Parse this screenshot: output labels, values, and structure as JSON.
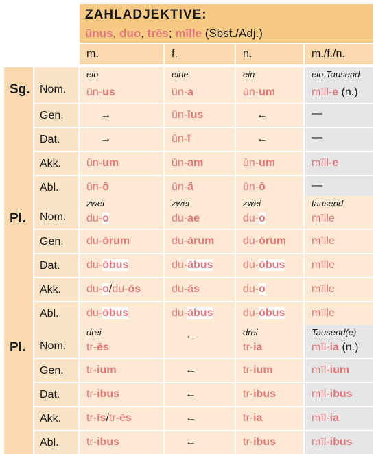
{
  "header": {
    "title": "ZAHLADJEKTIVE:",
    "sub": [
      {
        "t": "ūnus",
        "c": "salmon"
      },
      {
        "t": ", ",
        "c": "blk"
      },
      {
        "t": "duo",
        "c": "salmon"
      },
      {
        "t": ", ",
        "c": "blk"
      },
      {
        "t": "trēs",
        "c": "salmon"
      },
      {
        "t": ";  ",
        "c": "blk"
      },
      {
        "t": "mīlle",
        "c": "salmon"
      },
      {
        "t": " (Sbst./Adj.)",
        "c": "blk"
      }
    ],
    "columns": [
      "m.",
      "f.",
      "n.",
      "m./f./n."
    ]
  },
  "groups": [
    {
      "label": "Sg.",
      "rows": [
        {
          "case": "Nom.",
          "cells": [
            {
              "tag": "ein",
              "form": [
                [
                  "ūn-",
                  0
                ],
                [
                  "us",
                  1
                ]
              ]
            },
            {
              "tag": "eine",
              "form": [
                [
                  "ūn-",
                  0
                ],
                [
                  "a",
                  1
                ]
              ]
            },
            {
              "tag": "ein",
              "form": [
                [
                  "ūn-",
                  0
                ],
                [
                  "um",
                  1
                ]
              ]
            },
            {
              "tag": "ein Tausend",
              "form": [
                [
                  "mīll-",
                  0
                ],
                [
                  "e",
                  1
                ],
                [
                  " (n.)",
                  2
                ]
              ]
            }
          ]
        },
        {
          "case": "Gen.",
          "cells": [
            {
              "arrow": "→"
            },
            {
              "form": [
                [
                  "ūn-",
                  0
                ],
                [
                  "īus",
                  1
                ]
              ]
            },
            {
              "arrow": "←"
            },
            {
              "dash": "—"
            }
          ]
        },
        {
          "case": "Dat.",
          "cells": [
            {
              "arrow": "→"
            },
            {
              "form": [
                [
                  "ūn-",
                  0
                ],
                [
                  "ī",
                  1
                ]
              ]
            },
            {
              "arrow": "←"
            },
            {
              "dash": "—"
            }
          ]
        },
        {
          "case": "Akk.",
          "cells": [
            {
              "form": [
                [
                  "ūn-",
                  0
                ],
                [
                  "um",
                  1
                ]
              ]
            },
            {
              "form": [
                [
                  "ūn-",
                  0
                ],
                [
                  "am",
                  1
                ]
              ]
            },
            {
              "form": [
                [
                  "ūn-",
                  0
                ],
                [
                  "um",
                  1
                ]
              ]
            },
            {
              "form": [
                [
                  "mīll-",
                  0
                ],
                [
                  "e",
                  1
                ]
              ]
            }
          ]
        },
        {
          "case": "Abl.",
          "cells": [
            {
              "form": [
                [
                  "ūn-",
                  0
                ],
                [
                  "ō",
                  1
                ]
              ]
            },
            {
              "form": [
                [
                  "ūn-",
                  0
                ],
                [
                  "ā",
                  1
                ]
              ]
            },
            {
              "form": [
                [
                  "ūn-",
                  0
                ],
                [
                  "ō",
                  1
                ]
              ]
            },
            {
              "dash": "—"
            }
          ]
        }
      ]
    },
    {
      "label": "Pl.",
      "rows": [
        {
          "case": "Nom.",
          "cells": [
            {
              "tag": "zwei",
              "form": [
                [
                  "du-",
                  0
                ],
                [
                  "o",
                  3
                ]
              ]
            },
            {
              "tag": "zwei",
              "form": [
                [
                  "du-",
                  0
                ],
                [
                  "ae",
                  1
                ]
              ]
            },
            {
              "tag": "zwei",
              "form": [
                [
                  "du-",
                  0
                ],
                [
                  "o",
                  3
                ]
              ]
            },
            {
              "tag": "tausend",
              "form": [
                [
                  "mīlle",
                  0
                ]
              ]
            }
          ]
        },
        {
          "case": "Gen.",
          "cells": [
            {
              "form": [
                [
                  "du-",
                  0
                ],
                [
                  "ōrum",
                  1
                ]
              ]
            },
            {
              "form": [
                [
                  "du-",
                  0
                ],
                [
                  "ārum",
                  1
                ]
              ]
            },
            {
              "form": [
                [
                  "du-",
                  0
                ],
                [
                  "ōrum",
                  1
                ]
              ]
            },
            {
              "form": [
                [
                  "mīlle",
                  0
                ]
              ]
            }
          ]
        },
        {
          "case": "Dat.",
          "cells": [
            {
              "form": [
                [
                  "du-",
                  0
                ],
                [
                  "ōbus",
                  3
                ]
              ]
            },
            {
              "form": [
                [
                  "du-",
                  0
                ],
                [
                  "ābus",
                  3
                ]
              ]
            },
            {
              "form": [
                [
                  "du-",
                  0
                ],
                [
                  "ōbus",
                  3
                ]
              ]
            },
            {
              "form": [
                [
                  "mīlle",
                  0
                ]
              ]
            }
          ]
        },
        {
          "case": "Akk.",
          "cells": [
            {
              "form": [
                [
                  "du-",
                  0
                ],
                [
                  "o",
                  3
                ],
                [
                  "/",
                  2
                ],
                [
                  "du-",
                  0
                ],
                [
                  "ōs",
                  1
                ]
              ]
            },
            {
              "form": [
                [
                  "du-",
                  0
                ],
                [
                  "ās",
                  1
                ]
              ]
            },
            {
              "form": [
                [
                  "du-",
                  0
                ],
                [
                  "o",
                  3
                ]
              ]
            },
            {
              "form": [
                [
                  "mīlle",
                  0
                ]
              ]
            }
          ]
        },
        {
          "case": "Abl.",
          "cells": [
            {
              "form": [
                [
                  "du-",
                  0
                ],
                [
                  "ōbus",
                  3
                ]
              ]
            },
            {
              "form": [
                [
                  "du-",
                  0
                ],
                [
                  "ābus",
                  3
                ]
              ]
            },
            {
              "form": [
                [
                  "du-",
                  0
                ],
                [
                  "ōbus",
                  3
                ]
              ]
            },
            {
              "form": [
                [
                  "mīlle",
                  0
                ]
              ]
            }
          ]
        }
      ]
    },
    {
      "label": "Pl.",
      "rows": [
        {
          "case": "Nom.",
          "cells": [
            {
              "tag": "drei",
              "form": [
                [
                  "tr-",
                  0
                ],
                [
                  "ēs",
                  1
                ]
              ]
            },
            {
              "arrow": "←"
            },
            {
              "tag": "drei",
              "form": [
                [
                  "tr-",
                  0
                ],
                [
                  "ia",
                  1
                ]
              ]
            },
            {
              "tag": "Tausend(e)",
              "form": [
                [
                  "mīl-",
                  0
                ],
                [
                  "ia",
                  1
                ],
                [
                  " (n.)",
                  2
                ]
              ]
            }
          ]
        },
        {
          "case": "Gen.",
          "cells": [
            {
              "form": [
                [
                  "tr-",
                  0
                ],
                [
                  "ium",
                  1
                ]
              ]
            },
            {
              "arrow": "←"
            },
            {
              "form": [
                [
                  "tr-",
                  0
                ],
                [
                  "ium",
                  1
                ]
              ]
            },
            {
              "form": [
                [
                  "mīl-",
                  0
                ],
                [
                  "ium",
                  1
                ]
              ]
            }
          ]
        },
        {
          "case": "Dat.",
          "cells": [
            {
              "form": [
                [
                  "tr-",
                  0
                ],
                [
                  "ibus",
                  1
                ]
              ]
            },
            {
              "arrow": "←"
            },
            {
              "form": [
                [
                  "tr-",
                  0
                ],
                [
                  "ibus",
                  1
                ]
              ]
            },
            {
              "form": [
                [
                  "mīl-",
                  0
                ],
                [
                  "ibus",
                  1
                ]
              ]
            }
          ]
        },
        {
          "case": "Akk.",
          "cells": [
            {
              "form": [
                [
                  "tr-",
                  0
                ],
                [
                  "īs",
                  1
                ],
                [
                  "/",
                  2
                ],
                [
                  "tr-",
                  0
                ],
                [
                  "ēs",
                  1
                ]
              ]
            },
            {
              "arrow": "←"
            },
            {
              "form": [
                [
                  "tr-",
                  0
                ],
                [
                  "ia",
                  1
                ]
              ]
            },
            {
              "form": [
                [
                  "mīl-",
                  0
                ],
                [
                  "ia",
                  1
                ]
              ]
            }
          ]
        },
        {
          "case": "Abl.",
          "cells": [
            {
              "form": [
                [
                  "tr-",
                  0
                ],
                [
                  "ibus",
                  1
                ]
              ]
            },
            {
              "arrow": "←"
            },
            {
              "form": [
                [
                  "tr-",
                  0
                ],
                [
                  "ibus",
                  1
                ]
              ]
            },
            {
              "form": [
                [
                  "mīl-",
                  0
                ],
                [
                  "ibus",
                  1
                ]
              ]
            }
          ]
        }
      ]
    }
  ],
  "colors": {
    "header": "#f7c983",
    "light": "#fad9ae",
    "cell": "#fde9d3",
    "accent": "#e0777a",
    "gray": "#e6e6e6"
  }
}
